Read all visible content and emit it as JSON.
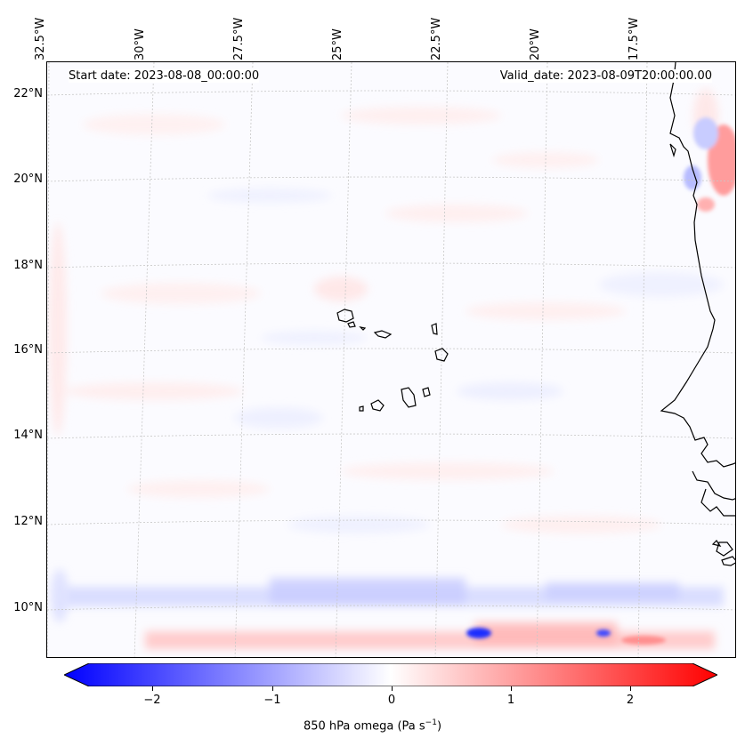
{
  "lon_labels": [
    "32.5°W",
    "30°W",
    "27.5°W",
    "25°W",
    "22.5°W",
    "20°W",
    "17.5°W"
  ],
  "lat_labels": [
    "22°N",
    "20°N",
    "18°N",
    "16°N",
    "14°N",
    "12°N",
    "10°N"
  ],
  "start_date": "Start date: 2023-08-08_00:00:00",
  "valid_date": "Valid_date: 2023-08-09T20:00:00.00",
  "colorbar": {
    "ticks": [
      "−2",
      "−1",
      "0",
      "1",
      "2"
    ],
    "label": "850 hPa omega (Pa s",
    "label_sup": "−1",
    "label_end": ")",
    "min_color": "#0000ff",
    "max_color": "#ff0000",
    "mid_color": "#ffffff"
  }
}
